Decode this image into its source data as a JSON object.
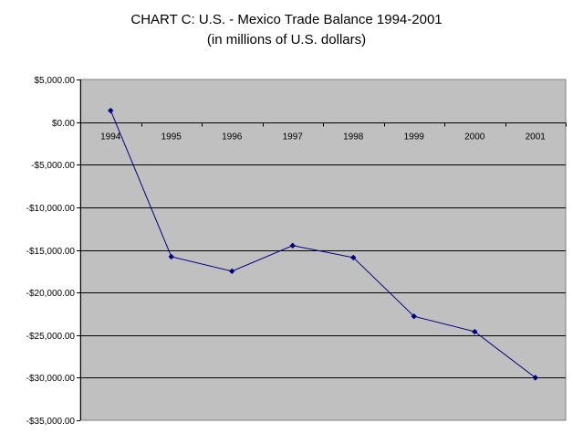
{
  "chart_data": {
    "type": "line",
    "title": "CHART C: U.S. - Mexico Trade Balance 1994-2001",
    "subtitle": "(in millions of U.S. dollars)",
    "categories": [
      "1994",
      "1995",
      "1996",
      "1997",
      "1998",
      "1999",
      "2000",
      "2001"
    ],
    "values": [
      1350,
      -15800,
      -17500,
      -14500,
      -15900,
      -22800,
      -24600,
      -30000
    ],
    "ylim": [
      -35000,
      5000
    ],
    "y_ticks": [
      5000,
      0,
      -5000,
      -10000,
      -15000,
      -20000,
      -25000,
      -30000,
      -35000
    ],
    "y_tick_labels": [
      "$5,000.00",
      "$0.00",
      "-$5,000.00",
      "-$10,000.00",
      "-$15,000.00",
      "-$20,000.00",
      "-$25,000.00",
      "-$30,000.00",
      "-$35,000.00"
    ],
    "grid": true,
    "legend": false,
    "colors": {
      "plot_bg": "#c0c0c0",
      "line": "#000080",
      "grid": "#000000"
    }
  }
}
